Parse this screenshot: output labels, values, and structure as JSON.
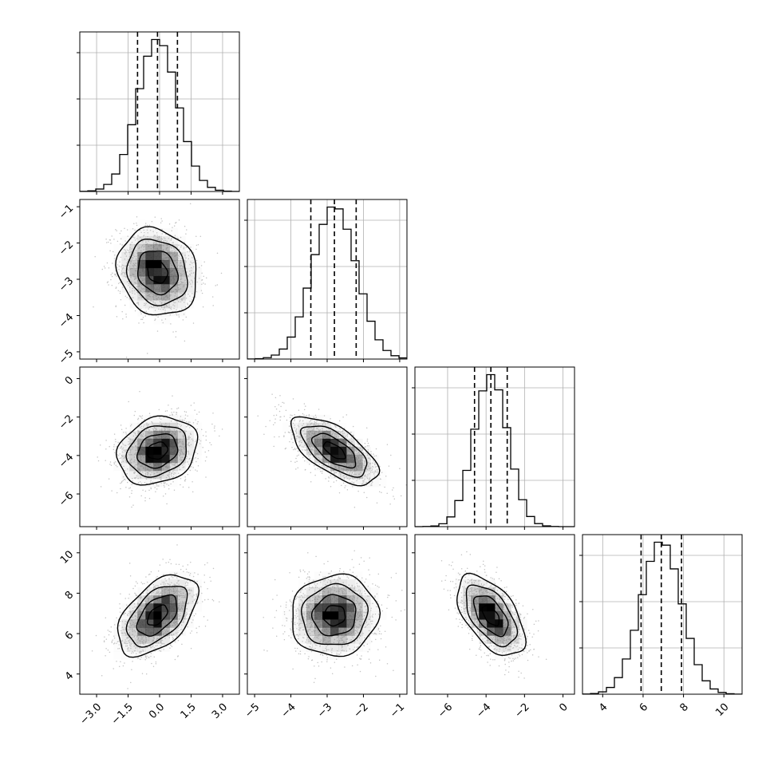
{
  "chart_data": {
    "type": "corner",
    "parameters": [
      {
        "range": [
          -3.8,
          3.8
        ],
        "ticks": [
          -3.0,
          -1.5,
          0.0,
          1.5,
          3.0
        ],
        "tick_labels": [
          "−3.0",
          "−1.5",
          "0.0",
          "1.5",
          "3.0"
        ],
        "mean": -0.1,
        "sigma": 0.95,
        "quantiles": [
          -1.05,
          -0.1,
          0.85
        ]
      },
      {
        "range": [
          -5.2,
          -0.8
        ],
        "ticks": [
          -5,
          -4,
          -3,
          -2,
          -1
        ],
        "tick_labels": [
          "−5",
          "−4",
          "−3",
          "−2",
          "−1"
        ],
        "mean": -2.8,
        "sigma": 0.6,
        "quantiles": [
          -3.45,
          -2.8,
          -2.2
        ]
      },
      {
        "range": [
          -7.7,
          0.6
        ],
        "ticks": [
          -6,
          -4,
          -2,
          0
        ],
        "tick_labels": [
          "−6",
          "−4",
          "−2",
          "0"
        ],
        "mean": -3.75,
        "sigma": 0.88,
        "quantiles": [
          -4.6,
          -3.75,
          -2.9
        ]
      },
      {
        "range": [
          3.0,
          10.9
        ],
        "ticks": [
          4,
          6,
          8,
          10
        ],
        "tick_labels": [
          "4",
          "6",
          "8",
          "10"
        ],
        "mean": 6.9,
        "sigma": 1.0,
        "quantiles": [
          5.9,
          6.9,
          7.9
        ]
      }
    ],
    "correlations": {
      "1-0": -0.15,
      "2-0": 0.2,
      "2-1": -0.65,
      "3-0": 0.5,
      "3-1": 0.05,
      "3-2": -0.55
    },
    "histogram": {
      "bins": 20,
      "style": "step",
      "quantile_line_style": "dashed"
    },
    "scatter_points_per_panel": 1400,
    "contour_levels_sigma": [
      0.5,
      1.0,
      1.5,
      2.0
    ],
    "grid": true,
    "colors": {
      "line": "#000000",
      "scatter": "#aaaaaa",
      "grid": "#b0b0b0"
    }
  }
}
